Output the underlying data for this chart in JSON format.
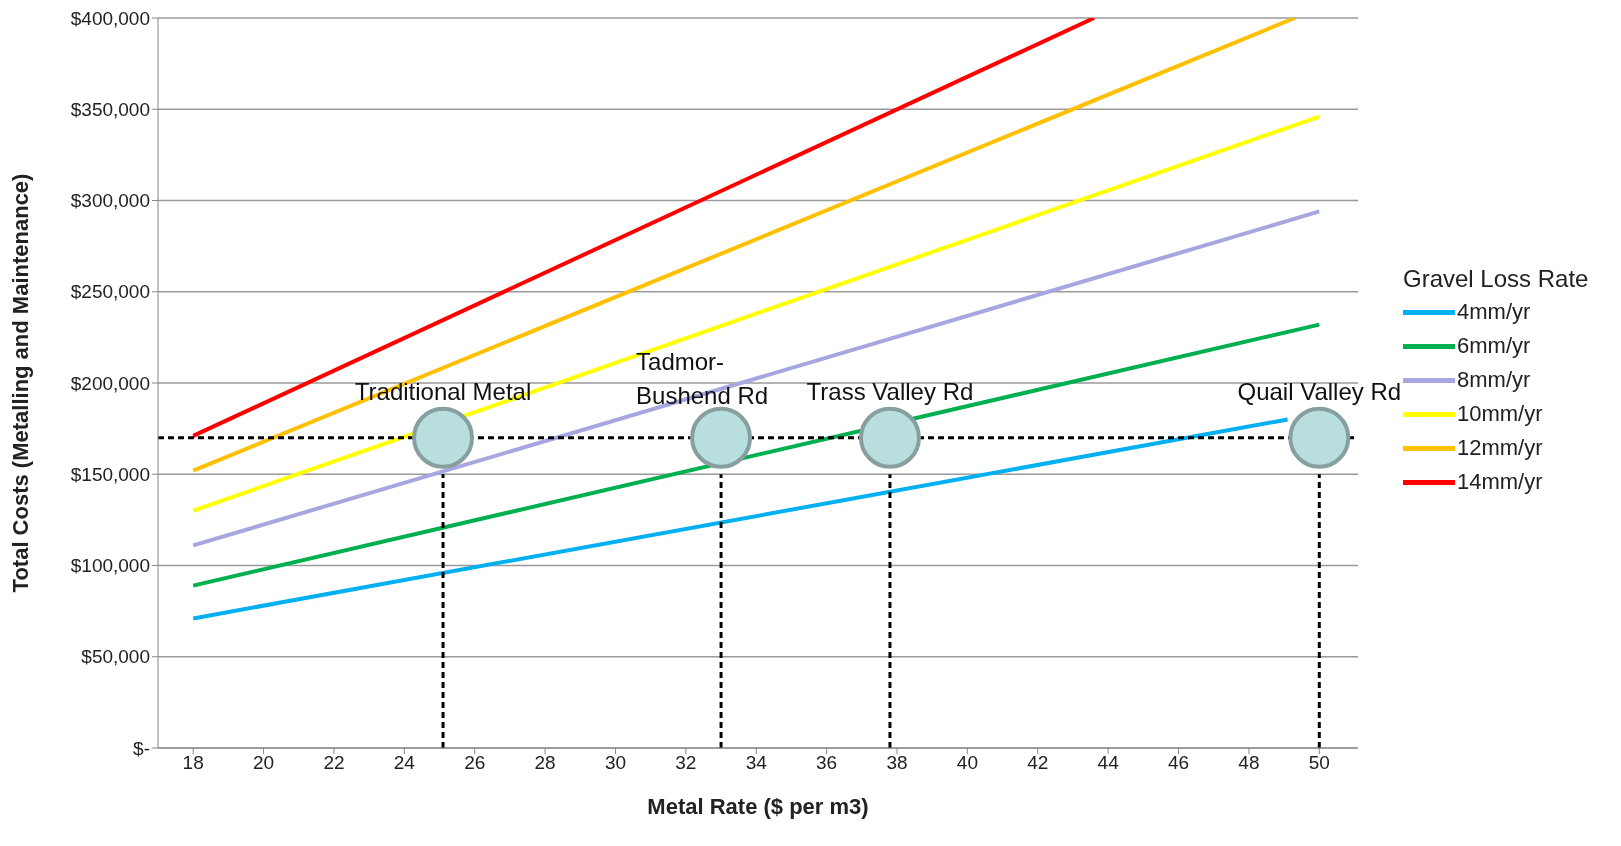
{
  "chart_data": {
    "type": "line",
    "xlabel": "Metal Rate ($ per m3)",
    "ylabel": "Total Costs (Metalling and Maintenance)",
    "legend_title": "Gravel Loss Rate",
    "legend": "right",
    "grid": "y",
    "marker": "none",
    "line_style": "solid",
    "xlim": [
      17,
      51.1
    ],
    "xticks": [
      18,
      20,
      22,
      24,
      26,
      28,
      30,
      32,
      34,
      36,
      38,
      40,
      42,
      44,
      46,
      48,
      50
    ],
    "ylim": [
      0,
      400000
    ],
    "yticks": [
      {
        "value": 0,
        "label": "$-"
      },
      {
        "value": 50000,
        "label": "$50,000"
      },
      {
        "value": 100000,
        "label": "$100,000"
      },
      {
        "value": 150000,
        "label": "$150,000"
      },
      {
        "value": 200000,
        "label": "$200,000"
      },
      {
        "value": 250000,
        "label": "$250,000"
      },
      {
        "value": 300000,
        "label": "$300,000"
      },
      {
        "value": 350000,
        "label": "$350,000"
      },
      {
        "value": 400000,
        "label": "$400,000"
      }
    ],
    "series": [
      {
        "name": "4mm/yr",
        "color": "#00b0f0",
        "x": [
          18,
          49.1
        ],
        "values": [
          71000,
          180000
        ]
      },
      {
        "name": "6mm/yr",
        "color": "#00b050",
        "x": [
          18,
          50
        ],
        "values": [
          89000,
          232000
        ]
      },
      {
        "name": "8mm/yr",
        "color": "#a6a6e0",
        "x": [
          18,
          50
        ],
        "values": [
          111000,
          294000
        ]
      },
      {
        "name": "10mm/yr",
        "color": "#ffff00",
        "x": [
          18,
          50
        ],
        "values": [
          130000,
          346000
        ]
      },
      {
        "name": "12mm/yr",
        "color": "#ffc000",
        "x": [
          18,
          49.3
        ],
        "values": [
          152000,
          400000
        ]
      },
      {
        "name": "14mm/yr",
        "color": "#ff0000",
        "x": [
          18,
          43.6
        ],
        "values": [
          171000,
          400000
        ]
      },
      {
        "color": "#000000",
        "line_style": "dashed",
        "x": [
          25.1,
          25.1
        ],
        "values": [
          0,
          150000
        ]
      },
      {
        "color": "#000000",
        "line_style": "dashed",
        "x": [
          33,
          33
        ],
        "values": [
          0,
          150000
        ]
      },
      {
        "color": "#000000",
        "line_style": "dashed",
        "x": [
          37.8,
          37.8
        ],
        "values": [
          0,
          150000
        ]
      },
      {
        "color": "#000000",
        "line_style": "dashed",
        "x": [
          50,
          50
        ],
        "values": [
          0,
          150000
        ]
      }
    ],
    "ref_lines": [
      {
        "axis": "y",
        "value": 170000,
        "color": "#000000",
        "line_style": "dashed"
      }
    ],
    "annotations": [
      {
        "text": "Traditional Metal",
        "x": 25.1,
        "y": 170000
      },
      {
        "text": "Tadmor-Bushend Rd",
        "x": 33,
        "y": 170000
      },
      {
        "text": "Trass Valley Rd",
        "x": 37.8,
        "y": 170000
      },
      {
        "text": "Quail Valley Rd",
        "x": 50,
        "y": 170000
      }
    ]
  }
}
